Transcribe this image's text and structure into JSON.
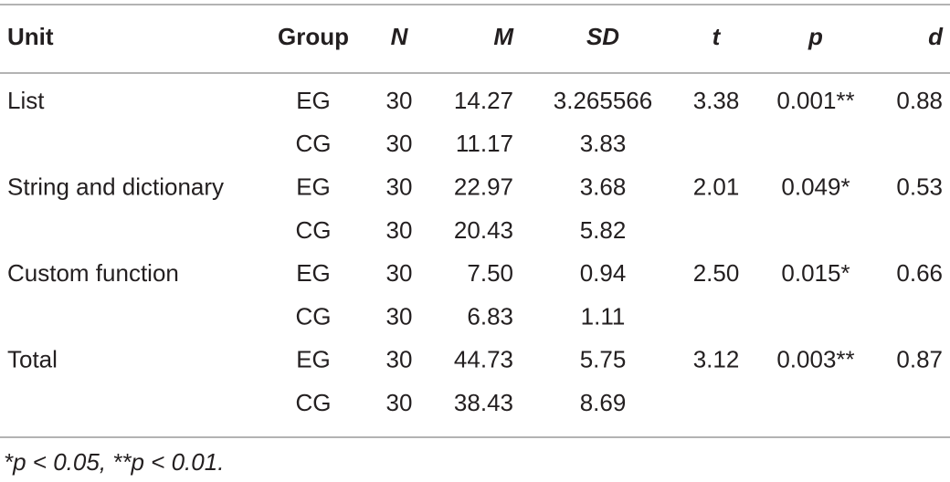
{
  "table": {
    "headers": [
      "Unit",
      "Group",
      "N",
      "M",
      "SD",
      "t",
      "p",
      "d"
    ],
    "rows": [
      [
        "List",
        "EG",
        "30",
        "14.27",
        "3.265566",
        "3.38",
        "0.001**",
        "0.88"
      ],
      [
        null,
        "CG",
        "30",
        "11.17",
        "3.83",
        null,
        null,
        null
      ],
      [
        "String and dictionary",
        "EG",
        "30",
        "22.97",
        "3.68",
        "2.01",
        "0.049*",
        "0.53"
      ],
      [
        null,
        "CG",
        "30",
        "20.43",
        "5.82",
        null,
        null,
        null
      ],
      [
        "Custom function",
        "EG",
        "30",
        "7.50",
        "0.94",
        "2.50",
        "0.015*",
        "0.66"
      ],
      [
        null,
        "CG",
        "30",
        "6.83",
        "1.11",
        null,
        null,
        null
      ],
      [
        "Total",
        "EG",
        "30",
        "44.73",
        "5.75",
        "3.12",
        "0.003**",
        "0.87"
      ],
      [
        null,
        "CG",
        "30",
        "38.43",
        "8.69",
        null,
        null,
        null
      ]
    ],
    "footnote": "*p < 0.05, **p < 0.01."
  }
}
